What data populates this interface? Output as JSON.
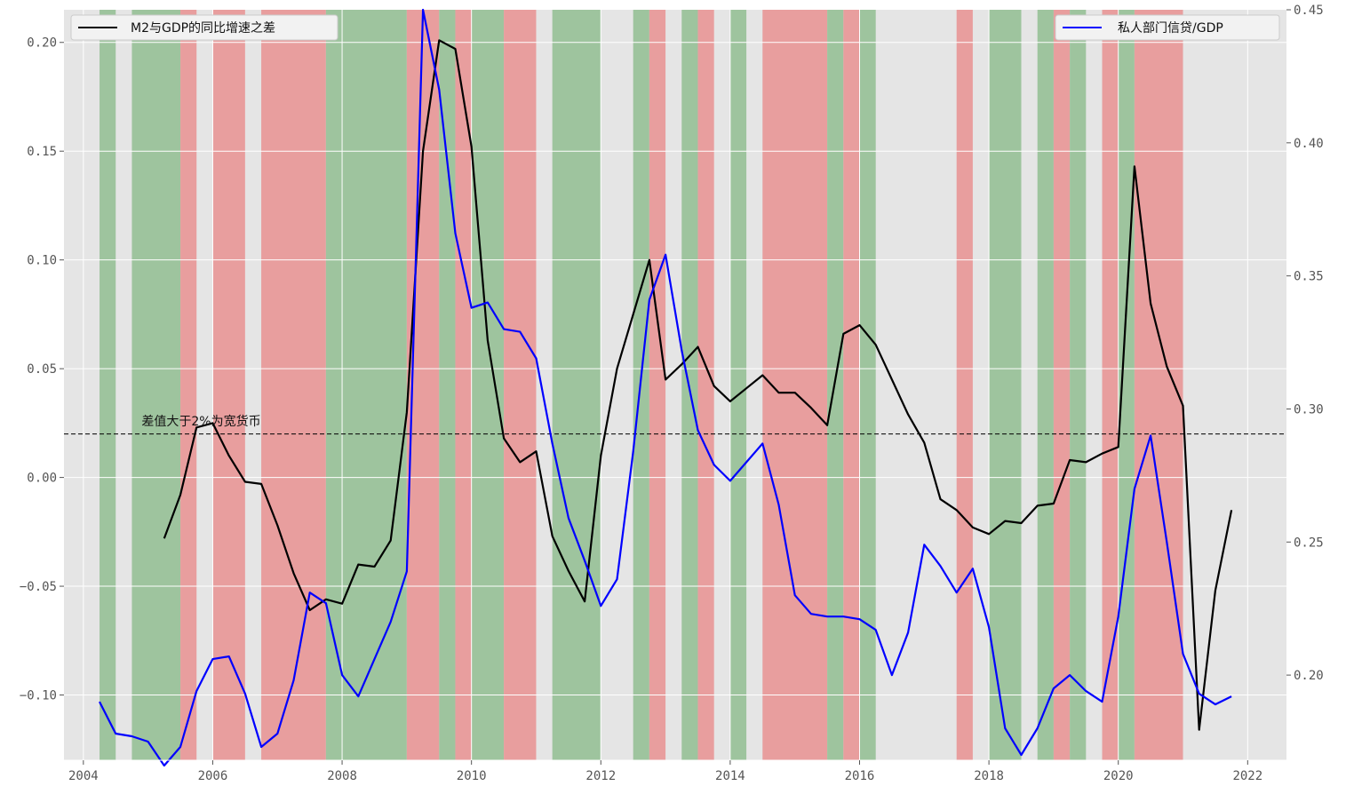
{
  "chart_data": {
    "type": "line",
    "title": "",
    "xlabel": "",
    "ylabel": "",
    "xlim": [
      2003.7,
      2022.6
    ],
    "ylim_left": [
      -0.13,
      0.215
    ],
    "ylim_right": [
      0.168,
      0.45
    ],
    "x_ticks": [
      2004,
      2006,
      2008,
      2010,
      2012,
      2014,
      2016,
      2018,
      2020,
      2022
    ],
    "x_tick_labels": [
      "2004",
      "2006",
      "2008",
      "2010",
      "2012",
      "2014",
      "2016",
      "2018",
      "2020",
      "2022"
    ],
    "y_left_ticks": [
      -0.1,
      -0.05,
      0.0,
      0.05,
      0.1,
      0.15,
      0.2
    ],
    "y_left_tick_labels": [
      "−0.10",
      "−0.05",
      "0.00",
      "0.05",
      "0.10",
      "0.15",
      "0.20"
    ],
    "y_right_ticks": [
      0.2,
      0.25,
      0.3,
      0.35,
      0.4,
      0.45
    ],
    "y_right_tick_labels": [
      "0.20",
      "0.25",
      "0.30",
      "0.35",
      "0.40",
      "0.45"
    ],
    "threshold": 0.02,
    "annotation": {
      "text": "差值大于2%为宽货币",
      "x": 2004.9,
      "y": 0.024
    },
    "series": [
      {
        "name": "M2与GDP的同比增速之差",
        "axis": "left",
        "color": "#000000",
        "x": [
          2005.25,
          2005.5,
          2005.75,
          2006.0,
          2006.25,
          2006.5,
          2006.75,
          2007.0,
          2007.25,
          2007.5,
          2007.75,
          2008.0,
          2008.25,
          2008.5,
          2008.75,
          2009.0,
          2009.25,
          2009.5,
          2009.75,
          2010.0,
          2010.25,
          2010.5,
          2010.75,
          2011.0,
          2011.25,
          2011.5,
          2011.75,
          2012.0,
          2012.25,
          2012.5,
          2012.75,
          2013.0,
          2013.25,
          2013.5,
          2013.75,
          2014.0,
          2014.25,
          2014.5,
          2014.75,
          2015.0,
          2015.25,
          2015.5,
          2015.75,
          2016.0,
          2016.25,
          2016.5,
          2016.75,
          2017.0,
          2017.25,
          2017.5,
          2017.75,
          2018.0,
          2018.25,
          2018.5,
          2018.75,
          2019.0,
          2019.25,
          2019.5,
          2019.75,
          2020.0,
          2020.25,
          2020.5,
          2020.75,
          2021.0,
          2021.25,
          2021.5,
          2021.75
        ],
        "values": [
          -0.028,
          -0.008,
          0.023,
          0.025,
          0.01,
          -0.002,
          -0.003,
          -0.022,
          -0.044,
          -0.061,
          -0.056,
          -0.058,
          -0.04,
          -0.041,
          -0.029,
          0.03,
          0.15,
          0.201,
          0.197,
          0.152,
          0.063,
          0.018,
          0.007,
          0.012,
          -0.027,
          -0.043,
          -0.057,
          0.01,
          0.05,
          0.075,
          0.1,
          0.045,
          0.052,
          0.06,
          0.042,
          0.035,
          0.041,
          0.047,
          0.039,
          0.039,
          0.032,
          0.024,
          0.066,
          0.07,
          0.061,
          0.045,
          0.029,
          0.016,
          -0.01,
          -0.015,
          -0.023,
          -0.026,
          -0.02,
          -0.021,
          -0.013,
          -0.012,
          0.008,
          0.007,
          0.011,
          0.014,
          0.143,
          0.08,
          0.051,
          0.033,
          -0.116,
          -0.052,
          -0.015
        ]
      },
      {
        "name": "私人部门信贷/GDP",
        "axis": "right",
        "color": "#0000ff",
        "x": [
          2004.25,
          2004.5,
          2004.75,
          2005.0,
          2005.25,
          2005.5,
          2005.75,
          2006.0,
          2006.25,
          2006.5,
          2006.75,
          2007.0,
          2007.25,
          2007.5,
          2007.75,
          2008.0,
          2008.25,
          2008.5,
          2008.75,
          2009.0,
          2009.25,
          2009.5,
          2009.75,
          2010.0,
          2010.25,
          2010.5,
          2010.75,
          2011.0,
          2011.25,
          2011.5,
          2011.75,
          2012.0,
          2012.25,
          2012.5,
          2012.75,
          2013.0,
          2013.25,
          2013.5,
          2013.75,
          2014.0,
          2014.25,
          2014.5,
          2014.75,
          2015.0,
          2015.25,
          2015.5,
          2015.75,
          2016.0,
          2016.25,
          2016.5,
          2016.75,
          2017.0,
          2017.25,
          2017.5,
          2017.75,
          2018.0,
          2018.25,
          2018.5,
          2018.75,
          2019.0,
          2019.25,
          2019.5,
          2019.75,
          2020.0,
          2020.25,
          2020.5,
          2020.75,
          2021.0,
          2021.25,
          2021.5,
          2021.75
        ],
        "values": [
          0.19,
          0.178,
          0.177,
          0.175,
          0.166,
          0.173,
          0.194,
          0.206,
          0.207,
          0.193,
          0.173,
          0.178,
          0.198,
          0.231,
          0.227,
          0.2,
          0.192,
          0.206,
          0.22,
          0.239,
          0.45,
          0.42,
          0.366,
          0.338,
          0.34,
          0.33,
          0.329,
          0.319,
          0.287,
          0.259,
          0.243,
          0.226,
          0.236,
          0.284,
          0.341,
          0.358,
          0.322,
          0.292,
          0.279,
          0.273,
          0.28,
          0.287,
          0.264,
          0.23,
          0.223,
          0.222,
          0.222,
          0.221,
          0.217,
          0.2,
          0.216,
          0.249,
          0.241,
          0.231,
          0.24,
          0.218,
          0.18,
          0.17,
          0.18,
          0.195,
          0.2,
          0.194,
          0.19,
          0.222,
          0.27,
          0.29,
          0.25,
          0.208,
          0.193,
          0.189,
          0.192
        ]
      }
    ],
    "shaded_regions": [
      {
        "start": 2004.25,
        "end": 2004.5,
        "color": "green"
      },
      {
        "start": 2004.75,
        "end": 2005.5,
        "color": "green"
      },
      {
        "start": 2005.5,
        "end": 2005.75,
        "color": "red"
      },
      {
        "start": 2006.0,
        "end": 2006.5,
        "color": "red"
      },
      {
        "start": 2006.75,
        "end": 2007.75,
        "color": "red"
      },
      {
        "start": 2007.75,
        "end": 2009.0,
        "color": "green"
      },
      {
        "start": 2009.0,
        "end": 2009.5,
        "color": "red"
      },
      {
        "start": 2009.5,
        "end": 2009.75,
        "color": "green"
      },
      {
        "start": 2009.75,
        "end": 2010.0,
        "color": "red"
      },
      {
        "start": 2010.0,
        "end": 2010.5,
        "color": "green"
      },
      {
        "start": 2010.5,
        "end": 2011.0,
        "color": "red"
      },
      {
        "start": 2011.25,
        "end": 2012.0,
        "color": "green"
      },
      {
        "start": 2012.5,
        "end": 2012.75,
        "color": "green"
      },
      {
        "start": 2012.75,
        "end": 2013.0,
        "color": "red"
      },
      {
        "start": 2013.25,
        "end": 2013.5,
        "color": "green"
      },
      {
        "start": 2013.5,
        "end": 2013.75,
        "color": "red"
      },
      {
        "start": 2014.0,
        "end": 2014.25,
        "color": "green"
      },
      {
        "start": 2014.5,
        "end": 2015.5,
        "color": "red"
      },
      {
        "start": 2015.5,
        "end": 2015.75,
        "color": "green"
      },
      {
        "start": 2015.75,
        "end": 2016.0,
        "color": "red"
      },
      {
        "start": 2016.0,
        "end": 2016.25,
        "color": "green"
      },
      {
        "start": 2017.5,
        "end": 2017.75,
        "color": "red"
      },
      {
        "start": 2018.0,
        "end": 2018.5,
        "color": "green"
      },
      {
        "start": 2018.75,
        "end": 2019.0,
        "color": "green"
      },
      {
        "start": 2019.0,
        "end": 2019.25,
        "color": "red"
      },
      {
        "start": 2019.25,
        "end": 2019.5,
        "color": "green"
      },
      {
        "start": 2019.75,
        "end": 2020.0,
        "color": "red"
      },
      {
        "start": 2020.0,
        "end": 2020.25,
        "color": "green"
      },
      {
        "start": 2020.25,
        "end": 2021.0,
        "color": "red"
      }
    ],
    "legend_left": {
      "position": "upper-left",
      "label": "M2与GDP的同比增速之差"
    },
    "legend_right": {
      "position": "upper-right",
      "label": "私人部门信贷/GDP"
    },
    "colors": {
      "background": "#e5e5e5",
      "grid": "#ffffff",
      "green_band": "#9ec49e",
      "red_band": "#e89e9e",
      "threshold_line": "#000000"
    }
  }
}
